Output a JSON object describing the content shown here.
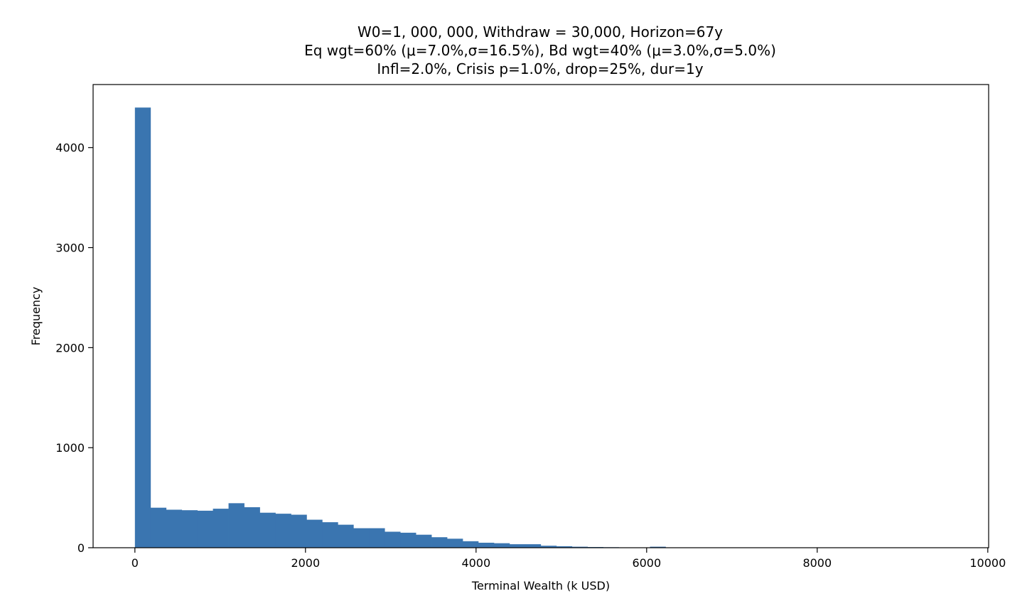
{
  "chart_data": {
    "type": "bar",
    "title_lines": [
      "W0=1, 000, 000, Withdraw = 30,000, Horizon=67y",
      "Eq wgt=60% (μ=7.0%,σ=16.5%), Bd wgt=40% (μ=3.0%,σ=5.0%)",
      "Infl=2.0%, Crisis p=1.0%, drop=25%, dur=1y"
    ],
    "xlabel": "Terminal Wealth (k USD)",
    "ylabel": "Frequency",
    "xlim": [
      -490,
      10010
    ],
    "ylim": [
      0,
      4630
    ],
    "xticks": [
      0,
      2000,
      4000,
      6000,
      8000,
      10000
    ],
    "yticks": [
      0,
      1000,
      2000,
      3000,
      4000
    ],
    "bar_color": "#3a75b0",
    "bin_start": 0,
    "bin_width": 183,
    "values": [
      4400,
      400,
      380,
      375,
      370,
      390,
      445,
      405,
      350,
      340,
      330,
      280,
      255,
      230,
      195,
      195,
      160,
      150,
      130,
      105,
      90,
      65,
      50,
      45,
      35,
      35,
      20,
      15,
      10,
      7,
      5,
      3,
      3,
      10,
      2,
      1,
      1,
      1,
      0,
      0,
      0,
      0,
      0,
      0,
      0,
      0,
      0,
      0,
      0,
      0,
      0,
      0,
      0,
      0
    ],
    "grid": false,
    "legend": "none"
  }
}
